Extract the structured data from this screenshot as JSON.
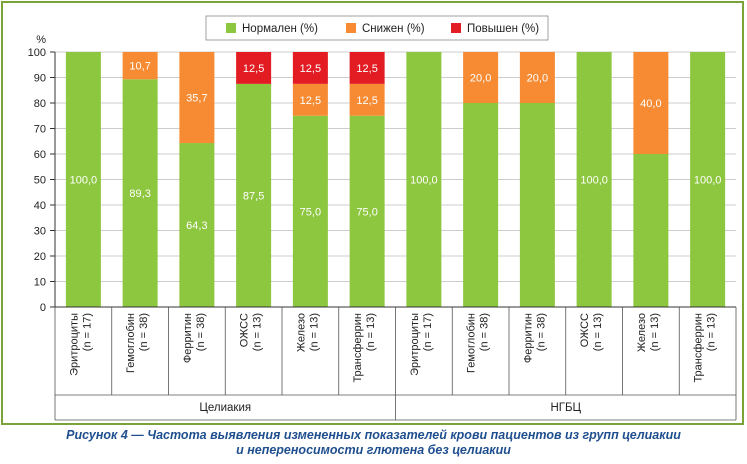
{
  "chart_data": {
    "type": "bar",
    "stacked": true,
    "y_unit_label": "%",
    "ylim": [
      0,
      100
    ],
    "y_ticks": [
      0,
      10,
      20,
      30,
      40,
      50,
      60,
      70,
      80,
      90,
      100
    ],
    "legend_position": "top-center",
    "grid": true,
    "categories": [
      {
        "name": "Эритроциты",
        "n": "(n = 17)"
      },
      {
        "name": "Гемоглобин",
        "n": "(n = 38)"
      },
      {
        "name": "Ферритин",
        "n": "(n = 38)"
      },
      {
        "name": "ОЖСС",
        "n": "(n = 13)"
      },
      {
        "name": "Железо",
        "n": "(n = 13)"
      },
      {
        "name": "Трансферрин",
        "n": "(n = 13)"
      },
      {
        "name": "Эритроциты",
        "n": "(n = 17)"
      },
      {
        "name": "Гемоглобин",
        "n": "(n = 38)"
      },
      {
        "name": "Ферритин",
        "n": "(n = 38)"
      },
      {
        "name": "ОЖСС",
        "n": "(n = 13)"
      },
      {
        "name": "Железо",
        "n": "(n = 13)"
      },
      {
        "name": "Трансферрин",
        "n": "(n = 13)"
      }
    ],
    "series": [
      {
        "name": "Нормален (%)",
        "color": "#8dc63f",
        "values": [
          100,
          89.3,
          64.3,
          87.5,
          75,
          75,
          100,
          80,
          80,
          100,
          60,
          100
        ],
        "labels": [
          "100,0",
          "89,3",
          "64,3",
          "87,5",
          "75,0",
          "75,0",
          "100,0",
          "",
          "",
          "100,0",
          "",
          "100,0"
        ]
      },
      {
        "name": "Снижен (%)",
        "color": "#f68b33",
        "values": [
          0,
          10.7,
          35.7,
          0,
          12.5,
          12.5,
          0,
          20,
          20,
          0,
          40,
          0
        ],
        "labels": [
          "",
          "10,7",
          "35,7",
          "",
          "12,5",
          "12,5",
          "",
          "20,0",
          "20,0",
          "",
          "40,0",
          ""
        ]
      },
      {
        "name": "Повышен (%)",
        "color": "#e31b23",
        "values": [
          0,
          0,
          0,
          12.5,
          12.5,
          12.5,
          0,
          0,
          0,
          0,
          0,
          0
        ],
        "labels": [
          "",
          "",
          "",
          "12,5",
          "12,5",
          "12,5",
          "",
          "",
          "",
          "",
          "",
          ""
        ]
      }
    ],
    "groups": [
      {
        "name": "Целиакия",
        "from": 0,
        "to": 5
      },
      {
        "name": "НГБЦ",
        "from": 6,
        "to": 11
      }
    ]
  },
  "caption": {
    "line1": "Рисунок 4 — Частота выявления измененных показателей крови пациентов из групп целиакии",
    "line2": "и непереносимости глютена без целиакии"
  }
}
